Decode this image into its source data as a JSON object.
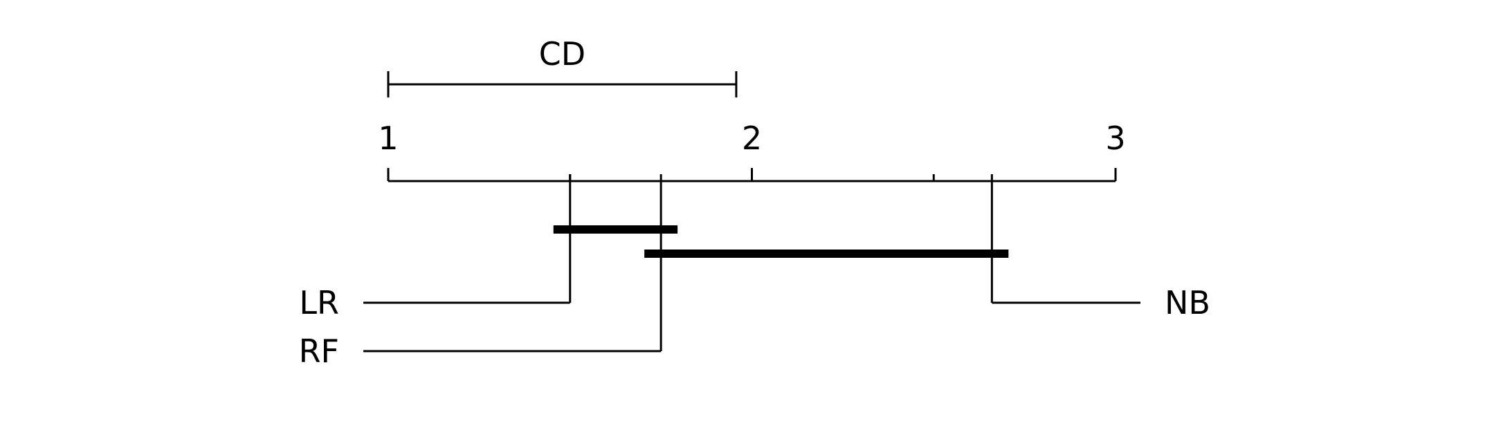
{
  "chart_data": {
    "type": "critical-difference",
    "axis": {
      "min": 1,
      "max": 3,
      "major_ticks": [
        1,
        2,
        3
      ],
      "major_tick_labels": [
        "1",
        "2",
        "3"
      ],
      "minor_ticks": [
        1.5,
        2.5
      ]
    },
    "cd": {
      "label": "CD",
      "value": 0.957
    },
    "methods": [
      {
        "name": "LR",
        "rank": 1.5,
        "side": "left"
      },
      {
        "name": "RF",
        "rank": 1.75,
        "side": "left"
      },
      {
        "name": "NB",
        "rank": 2.66,
        "side": "right"
      }
    ],
    "cliques": [
      {
        "members": [
          "LR",
          "RF"
        ],
        "start": 1.5,
        "end": 1.75
      },
      {
        "members": [
          "RF",
          "NB"
        ],
        "start": 1.75,
        "end": 2.66
      }
    ],
    "colors": {
      "ink": "#000000",
      "background": "#ffffff"
    }
  }
}
